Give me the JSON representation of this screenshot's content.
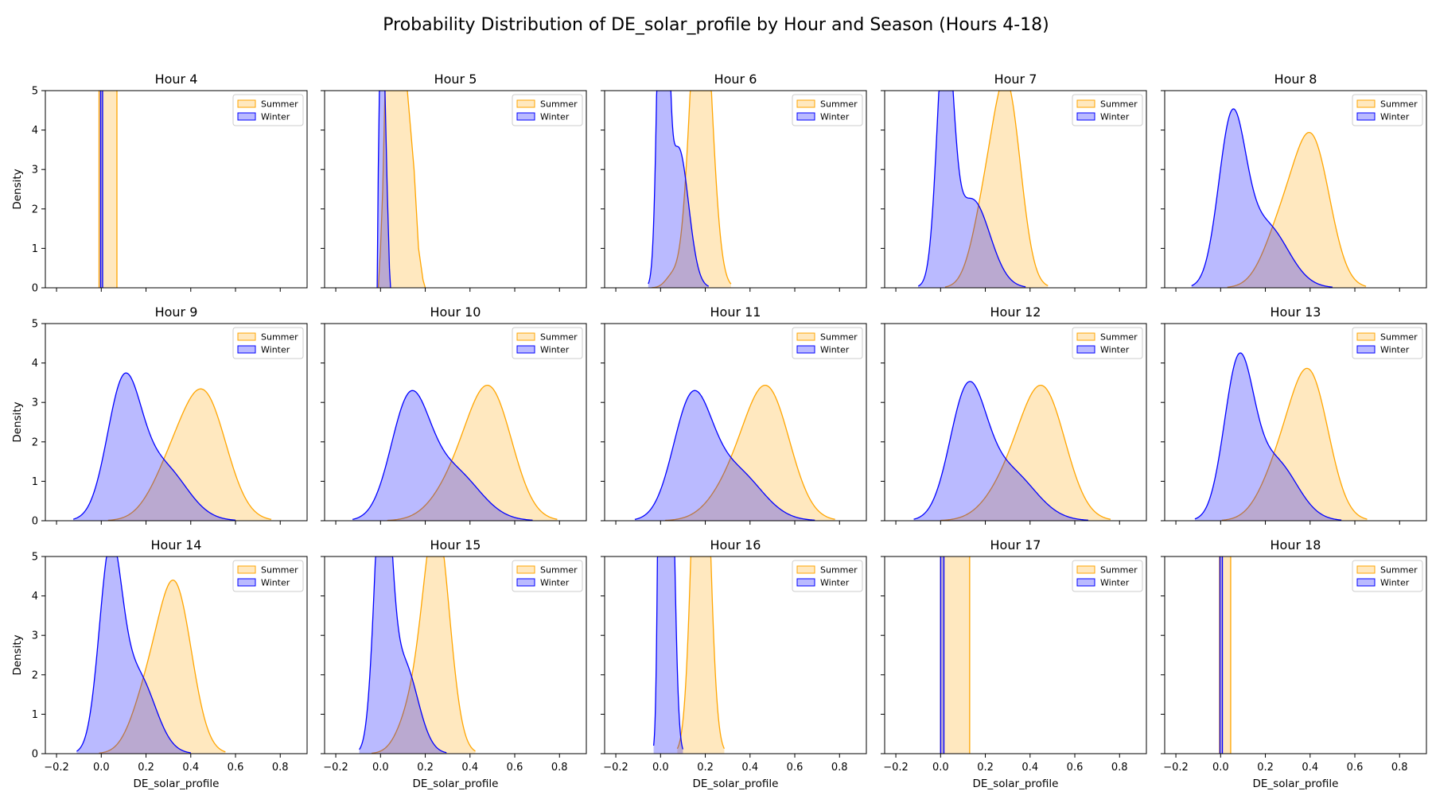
{
  "chart_data": {
    "type": "area",
    "title": "Probability Distribution of DE_solar_profile by Hour and Season (Hours 4-18)",
    "xlabel": "DE_solar_profile",
    "ylabel": "Density",
    "xlim": [
      -0.25,
      0.92
    ],
    "ylim": [
      0,
      5
    ],
    "xticks": [
      -0.2,
      0.0,
      0.2,
      0.4,
      0.6,
      0.8
    ],
    "yticks": [
      0,
      1,
      2,
      3,
      4,
      5
    ],
    "legend_position": "top-right",
    "grid": false,
    "series_colors": {
      "Summer": "#ffa500",
      "Winter": "#0000ff"
    },
    "panels": [
      {
        "title": "Hour 4",
        "series": [
          {
            "name": "Summer",
            "kind": "box",
            "x": [
              -0.01,
              0.07
            ],
            "top": 5
          },
          {
            "name": "Winter",
            "kind": "box",
            "x": [
              -0.003,
              0.006
            ],
            "top": 5
          }
        ]
      },
      {
        "title": "Hour 5",
        "series": [
          {
            "name": "Summer",
            "kind": "points",
            "x": [
              -0.01,
              0.0,
              0.01,
              0.02,
              0.04,
              0.08,
              0.12,
              0.15,
              0.17,
              0.19,
              0.2
            ],
            "y": [
              0,
              1.0,
              2.5,
              5,
              5,
              5,
              5,
              3.0,
              1.0,
              0.2,
              0
            ]
          },
          {
            "name": "Winter",
            "kind": "points",
            "x": [
              -0.015,
              -0.01,
              -0.005,
              0.0,
              0.01,
              0.02,
              0.03,
              0.04,
              0.045
            ],
            "y": [
              0,
              3.0,
              5,
              5,
              5,
              5,
              2.5,
              0.5,
              0
            ]
          }
        ]
      },
      {
        "title": "Hour 6",
        "series": [
          {
            "name": "Summer",
            "kind": "gaussians",
            "components": [
              {
                "mu": 0.18,
                "sigma": 0.045,
                "w": 0.98
              },
              {
                "mu": 0.05,
                "sigma": 0.03,
                "w": 0.02
              }
            ]
          },
          {
            "name": "Winter",
            "kind": "gaussians",
            "components": [
              {
                "mu": 0.01,
                "sigma": 0.02,
                "w": 0.6
              },
              {
                "mu": 0.08,
                "sigma": 0.045,
                "w": 0.4
              }
            ]
          }
        ]
      },
      {
        "title": "Hour 7",
        "series": [
          {
            "name": "Summer",
            "kind": "gaussians",
            "components": [
              {
                "mu": 0.3,
                "sigma": 0.06,
                "w": 0.72
              },
              {
                "mu": 0.2,
                "sigma": 0.06,
                "w": 0.28
              }
            ]
          },
          {
            "name": "Winter",
            "kind": "gaussians",
            "components": [
              {
                "mu": 0.02,
                "sigma": 0.035,
                "w": 0.55
              },
              {
                "mu": 0.14,
                "sigma": 0.08,
                "w": 0.45
              }
            ]
          }
        ]
      },
      {
        "title": "Hour 8",
        "series": [
          {
            "name": "Summer",
            "kind": "gaussians",
            "components": [
              {
                "mu": 0.41,
                "sigma": 0.08,
                "w": 0.72
              },
              {
                "mu": 0.27,
                "sigma": 0.08,
                "w": 0.28
              }
            ]
          },
          {
            "name": "Winter",
            "kind": "gaussians",
            "components": [
              {
                "mu": 0.05,
                "sigma": 0.06,
                "w": 0.6
              },
              {
                "mu": 0.2,
                "sigma": 0.1,
                "w": 0.4
              }
            ]
          }
        ]
      },
      {
        "title": "Hour 9",
        "series": [
          {
            "name": "Summer",
            "kind": "gaussians",
            "components": [
              {
                "mu": 0.46,
                "sigma": 0.1,
                "w": 0.78
              },
              {
                "mu": 0.3,
                "sigma": 0.09,
                "w": 0.22
              }
            ]
          },
          {
            "name": "Winter",
            "kind": "gaussians",
            "components": [
              {
                "mu": 0.1,
                "sigma": 0.075,
                "w": 0.62
              },
              {
                "mu": 0.27,
                "sigma": 0.11,
                "w": 0.38
              }
            ]
          }
        ]
      },
      {
        "title": "Hour 10",
        "series": [
          {
            "name": "Summer",
            "kind": "gaussians",
            "components": [
              {
                "mu": 0.49,
                "sigma": 0.1,
                "w": 0.8
              },
              {
                "mu": 0.33,
                "sigma": 0.1,
                "w": 0.2
              }
            ]
          },
          {
            "name": "Winter",
            "kind": "gaussians",
            "components": [
              {
                "mu": 0.13,
                "sigma": 0.085,
                "w": 0.62
              },
              {
                "mu": 0.32,
                "sigma": 0.12,
                "w": 0.38
              }
            ]
          }
        ]
      },
      {
        "title": "Hour 11",
        "series": [
          {
            "name": "Summer",
            "kind": "gaussians",
            "components": [
              {
                "mu": 0.48,
                "sigma": 0.1,
                "w": 0.8
              },
              {
                "mu": 0.32,
                "sigma": 0.1,
                "w": 0.2
              }
            ]
          },
          {
            "name": "Winter",
            "kind": "gaussians",
            "components": [
              {
                "mu": 0.14,
                "sigma": 0.085,
                "w": 0.62
              },
              {
                "mu": 0.33,
                "sigma": 0.12,
                "w": 0.38
              }
            ]
          }
        ]
      },
      {
        "title": "Hour 12",
        "series": [
          {
            "name": "Summer",
            "kind": "gaussians",
            "components": [
              {
                "mu": 0.46,
                "sigma": 0.1,
                "w": 0.8
              },
              {
                "mu": 0.3,
                "sigma": 0.1,
                "w": 0.2
              }
            ]
          },
          {
            "name": "Winter",
            "kind": "gaussians",
            "components": [
              {
                "mu": 0.12,
                "sigma": 0.08,
                "w": 0.62
              },
              {
                "mu": 0.3,
                "sigma": 0.12,
                "w": 0.38
              }
            ]
          }
        ]
      },
      {
        "title": "Hour 13",
        "series": [
          {
            "name": "Summer",
            "kind": "gaussians",
            "components": [
              {
                "mu": 0.4,
                "sigma": 0.085,
                "w": 0.75
              },
              {
                "mu": 0.26,
                "sigma": 0.085,
                "w": 0.25
              }
            ]
          },
          {
            "name": "Winter",
            "kind": "gaussians",
            "components": [
              {
                "mu": 0.08,
                "sigma": 0.065,
                "w": 0.62
              },
              {
                "mu": 0.24,
                "sigma": 0.1,
                "w": 0.38
              }
            ]
          }
        ]
      },
      {
        "title": "Hour 14",
        "series": [
          {
            "name": "Summer",
            "kind": "gaussians",
            "components": [
              {
                "mu": 0.33,
                "sigma": 0.075,
                "w": 0.78
              },
              {
                "mu": 0.2,
                "sigma": 0.07,
                "w": 0.22
              }
            ]
          },
          {
            "name": "Winter",
            "kind": "gaussians",
            "components": [
              {
                "mu": 0.04,
                "sigma": 0.05,
                "w": 0.6
              },
              {
                "mu": 0.16,
                "sigma": 0.08,
                "w": 0.4
              }
            ]
          }
        ]
      },
      {
        "title": "Hour 15",
        "series": [
          {
            "name": "Summer",
            "kind": "gaussians",
            "components": [
              {
                "mu": 0.25,
                "sigma": 0.058,
                "w": 0.85
              },
              {
                "mu": 0.14,
                "sigma": 0.06,
                "w": 0.15
              }
            ]
          },
          {
            "name": "Winter",
            "kind": "gaussians",
            "components": [
              {
                "mu": 0.01,
                "sigma": 0.035,
                "w": 0.62
              },
              {
                "mu": 0.1,
                "sigma": 0.065,
                "w": 0.38
              }
            ]
          }
        ]
      },
      {
        "title": "Hour 16",
        "series": [
          {
            "name": "Summer",
            "kind": "gaussians",
            "components": [
              {
                "mu": 0.18,
                "sigma": 0.035,
                "w": 1.0
              }
            ]
          },
          {
            "name": "Winter",
            "kind": "gaussians",
            "components": [
              {
                "mu": 0.005,
                "sigma": 0.012,
                "w": 0.5
              },
              {
                "mu": 0.04,
                "sigma": 0.02,
                "w": 0.5
              }
            ]
          }
        ]
      },
      {
        "title": "Hour 17",
        "series": [
          {
            "name": "Summer",
            "kind": "box",
            "x": [
              0.0,
              0.13
            ],
            "top": 5
          },
          {
            "name": "Winter",
            "kind": "box",
            "x": [
              0.0,
              0.015
            ],
            "top": 5
          }
        ]
      },
      {
        "title": "Hour 18",
        "series": [
          {
            "name": "Summer",
            "kind": "box",
            "x": [
              -0.005,
              0.045
            ],
            "top": 5
          },
          {
            "name": "Winter",
            "kind": "box",
            "x": [
              -0.003,
              0.008
            ],
            "top": 5
          }
        ]
      }
    ]
  }
}
